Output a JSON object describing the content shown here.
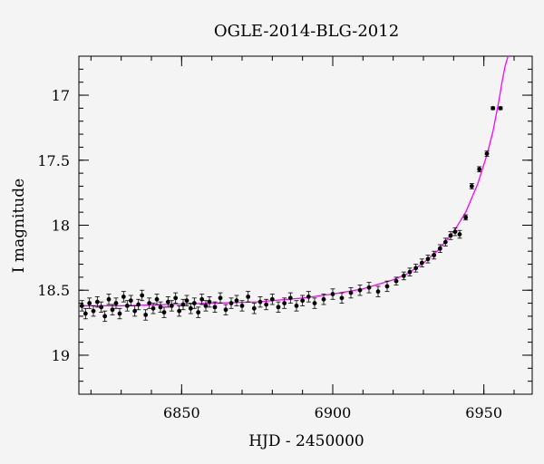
{
  "chart_data": {
    "type": "scatter",
    "title": "OGLE-2014-BLG-2012",
    "xlabel": "HJD - 2450000",
    "ylabel": "I magnitude",
    "xlim": [
      6816,
      6966
    ],
    "ylim": [
      19.3,
      16.7
    ],
    "y_inverted": true,
    "x_ticks": [
      6850,
      6900,
      6950
    ],
    "y_ticks": [
      17,
      17.5,
      18,
      18.5,
      19
    ],
    "grid": false,
    "colors": {
      "points": "#000000",
      "model": "#ff00ff",
      "background": "#f4f4f4"
    },
    "series": [
      {
        "kind": "points_with_errorbars",
        "x": [
          6817.0,
          6818.2,
          6819.5,
          6820.8,
          6822.1,
          6823.4,
          6824.6,
          6825.9,
          6827.1,
          6828.3,
          6829.5,
          6830.8,
          6832.0,
          6833.2,
          6834.5,
          6835.7,
          6836.9,
          6838.1,
          6839.3,
          6840.6,
          6841.8,
          6843.0,
          6844.2,
          6845.5,
          6846.7,
          6848.0,
          6849.2,
          6850.5,
          6851.7,
          6853.0,
          6854.2,
          6855.5,
          6856.7,
          6858.0,
          6859.2,
          6861.0,
          6862.8,
          6864.6,
          6866.4,
          6868.2,
          6870.0,
          6872.0,
          6874.0,
          6876.0,
          6878.0,
          6880.0,
          6882.0,
          6884.0,
          6886.0,
          6888.0,
          6890.0,
          6892.0,
          6894.0,
          6897.0,
          6900.0,
          6903.0,
          6906.0,
          6909.0,
          6912.0,
          6915.0,
          6918.0,
          6921.0,
          6923.5,
          6925.5,
          6927.5,
          6929.5,
          6931.5,
          6933.5,
          6935.5,
          6937.3,
          6939.0,
          6940.5,
          6942.0,
          6944.0,
          6946.0,
          6948.5,
          6951.0,
          6953.0,
          6955.5
        ],
        "y": [
          18.62,
          18.68,
          18.6,
          18.66,
          18.59,
          18.63,
          18.7,
          18.57,
          18.65,
          18.6,
          18.68,
          18.55,
          18.62,
          18.58,
          18.66,
          18.61,
          18.54,
          18.69,
          18.6,
          18.64,
          18.57,
          18.63,
          18.67,
          18.59,
          18.62,
          18.56,
          18.66,
          18.61,
          18.58,
          18.64,
          18.6,
          18.67,
          18.57,
          18.62,
          18.59,
          18.63,
          18.56,
          18.65,
          18.6,
          18.58,
          18.62,
          18.55,
          18.64,
          18.59,
          18.61,
          18.57,
          18.63,
          18.6,
          18.56,
          18.62,
          18.58,
          18.55,
          18.6,
          18.57,
          18.53,
          18.56,
          18.52,
          18.5,
          18.48,
          18.51,
          18.47,
          18.43,
          18.39,
          18.36,
          18.33,
          18.29,
          18.26,
          18.23,
          18.18,
          18.13,
          18.08,
          18.05,
          18.07,
          17.94,
          17.7,
          17.57,
          17.45,
          17.1,
          17.1
        ],
        "yerr": [
          0.04,
          0.04,
          0.04,
          0.04,
          0.04,
          0.04,
          0.04,
          0.04,
          0.04,
          0.04,
          0.04,
          0.04,
          0.04,
          0.04,
          0.04,
          0.04,
          0.04,
          0.04,
          0.04,
          0.04,
          0.04,
          0.04,
          0.04,
          0.04,
          0.04,
          0.04,
          0.04,
          0.04,
          0.04,
          0.04,
          0.04,
          0.04,
          0.04,
          0.04,
          0.04,
          0.04,
          0.04,
          0.04,
          0.04,
          0.04,
          0.04,
          0.04,
          0.04,
          0.04,
          0.04,
          0.04,
          0.04,
          0.04,
          0.04,
          0.04,
          0.04,
          0.04,
          0.04,
          0.04,
          0.04,
          0.04,
          0.04,
          0.04,
          0.04,
          0.04,
          0.04,
          0.03,
          0.03,
          0.03,
          0.03,
          0.03,
          0.03,
          0.03,
          0.03,
          0.03,
          0.03,
          0.03,
          0.03,
          0.02,
          0.02,
          0.02,
          0.02,
          0.01,
          0.01
        ]
      },
      {
        "kind": "model_curve",
        "x": [
          6816,
          6830,
          6845,
          6860,
          6875,
          6890,
          6900,
          6910,
          6920,
          6925,
          6930,
          6935,
          6940,
          6944,
          6948,
          6951,
          6953,
          6955,
          6956,
          6957,
          6958,
          6958.5
        ],
        "y": [
          18.62,
          18.62,
          18.61,
          18.6,
          18.59,
          18.56,
          18.53,
          18.49,
          18.42,
          18.37,
          18.29,
          18.19,
          18.05,
          17.9,
          17.68,
          17.46,
          17.28,
          17.04,
          16.9,
          16.78,
          16.7,
          16.65
        ]
      }
    ]
  }
}
